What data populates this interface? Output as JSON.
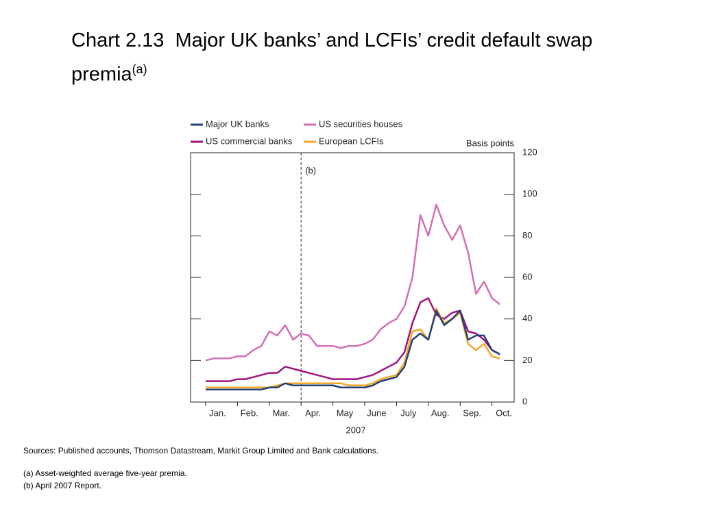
{
  "chart_data": {
    "type": "line",
    "title": "Chart 2.13  Major UK banks’ and LCFIs’ credit default swap premia",
    "title_note": "(a)",
    "y_label": "Basis points",
    "x_label": "2007",
    "annotation": "(b)",
    "annotation_index": 12,
    "categories": [
      null,
      "Jan.",
      null,
      null,
      null,
      "Feb.",
      null,
      null,
      null,
      "Mar.",
      null,
      null,
      null,
      "Apr.",
      null,
      null,
      null,
      "May",
      null,
      null,
      null,
      "June",
      null,
      null,
      null,
      "July",
      null,
      null,
      null,
      "Aug.",
      null,
      null,
      null,
      "Sep.",
      null,
      null,
      null,
      "Oct."
    ],
    "ylim": [
      0,
      120
    ],
    "yticks": [
      0,
      20,
      40,
      60,
      80,
      100,
      120
    ],
    "series": [
      {
        "name": "Major UK banks",
        "color": "#1f3f7a",
        "values": [
          6,
          6,
          6,
          6,
          6,
          6,
          6,
          6,
          7,
          7,
          9,
          8,
          8,
          8,
          8,
          8,
          8,
          7,
          7,
          7,
          7,
          8,
          10,
          11,
          12,
          17,
          30,
          33,
          30,
          44,
          37,
          40,
          44,
          30,
          32,
          32,
          25,
          23
        ]
      },
      {
        "name": "US securities houses",
        "color": "#d36fb2",
        "values": [
          20,
          21,
          21,
          21,
          22,
          22,
          25,
          27,
          34,
          32,
          37,
          30,
          33,
          32,
          27,
          27,
          27,
          26,
          27,
          27,
          28,
          30,
          35,
          38,
          40,
          46,
          60,
          90,
          80,
          95,
          85,
          78,
          85,
          72,
          52,
          58,
          50,
          47
        ]
      },
      {
        "name": "US commercial banks",
        "color": "#a0127f",
        "values": [
          10,
          10,
          10,
          10,
          11,
          11,
          12,
          13,
          14,
          14,
          17,
          16,
          15,
          14,
          13,
          12,
          11,
          11,
          11,
          11,
          12,
          13,
          15,
          17,
          19,
          24,
          38,
          48,
          50,
          42,
          40,
          43,
          44,
          34,
          33,
          30,
          25,
          23
        ]
      },
      {
        "name": "European LCFIs",
        "color": "#f5a623",
        "values": [
          7,
          7,
          7,
          7,
          7,
          7,
          7,
          7,
          7,
          8,
          9,
          9,
          9,
          9,
          9,
          9,
          9,
          9,
          8,
          8,
          8,
          9,
          11,
          12,
          13,
          19,
          34,
          35,
          30,
          45,
          38,
          40,
          43,
          28,
          25,
          28,
          22,
          21
        ]
      }
    ]
  },
  "notes": {
    "sources": "Sources:  Published accounts, Thomson Datastream, Markit Group Limited and Bank calculations.",
    "a": "(a)  Asset-weighted average five-year premia.",
    "b": "(b)  April 2007 Report."
  }
}
